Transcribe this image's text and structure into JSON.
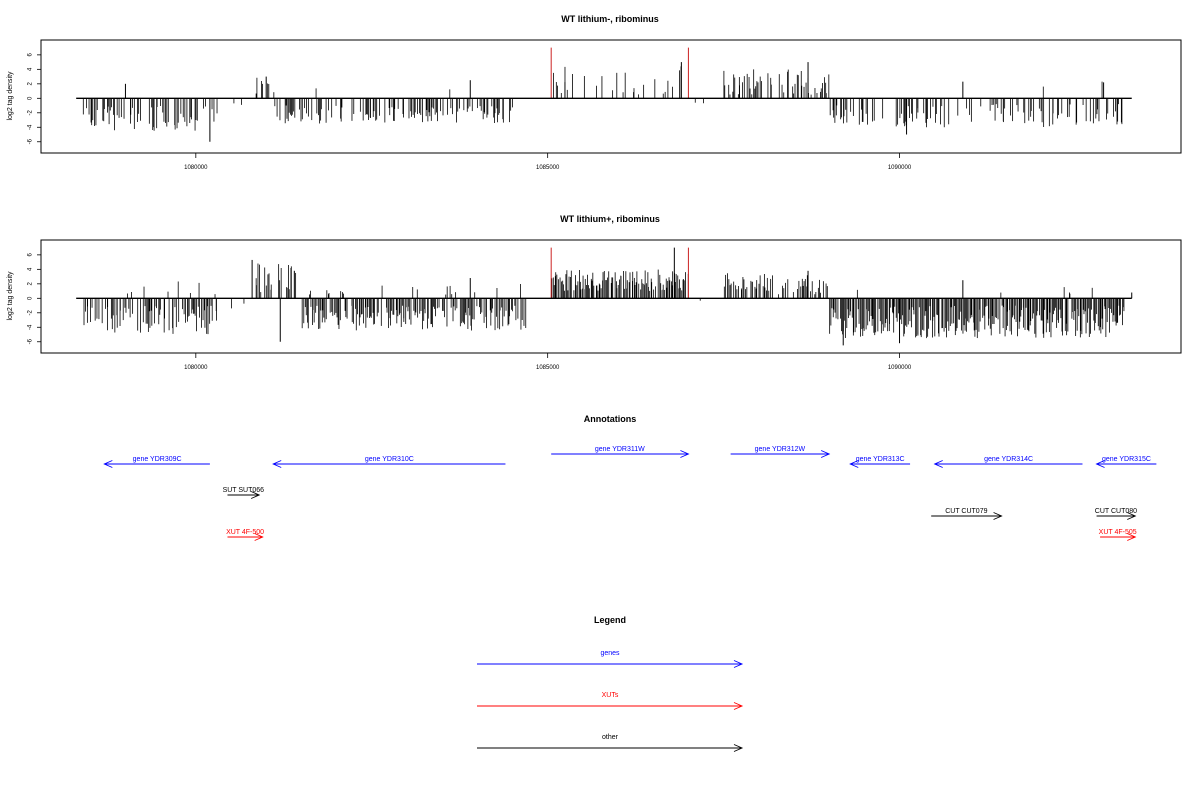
{
  "colors": {
    "gene": "#0000ff",
    "xut": "#ff0000",
    "other": "#000000",
    "peak": "#cc2222",
    "bar": "#000000"
  },
  "chart_data": [
    {
      "type": "bar",
      "title": "WT lithium-, ribominus",
      "ylabel": "log2 tag density",
      "ylim": [
        -7,
        7.5
      ],
      "yticks": [
        -6,
        -4,
        -2,
        0,
        2,
        4,
        6
      ],
      "xlim": [
        1077800,
        1094000
      ],
      "xticks": [
        1080000,
        1085000,
        1090000
      ],
      "xtick_labels": [
        "1080000",
        "1085000",
        "1090000"
      ],
      "xrange": [
        1078300,
        1093300
      ],
      "grid": false,
      "segments": [
        {
          "from": 1078400,
          "to": 1080300,
          "sign": -1,
          "density": 0.45,
          "min": 1.0,
          "max": 4.5,
          "pos_frac": 0.02,
          "pos_max": 2.0
        },
        {
          "from": 1080300,
          "to": 1080800,
          "sign": -1,
          "density": 0.05,
          "min": 0.2,
          "max": 1.0,
          "pos_frac": 0.0,
          "pos_max": 1.0
        },
        {
          "from": 1080800,
          "to": 1081100,
          "sign": 1,
          "density": 0.35,
          "min": 0.5,
          "max": 3.0,
          "pos_frac": 0.0,
          "pos_max": 1.0
        },
        {
          "from": 1081100,
          "to": 1084500,
          "sign": -1,
          "density": 0.55,
          "min": 1.0,
          "max": 3.5,
          "pos_frac": 0.03,
          "pos_max": 2.5
        },
        {
          "from": 1084500,
          "to": 1085050,
          "sign": -1,
          "density": 0.04,
          "min": 0.2,
          "max": 0.8,
          "pos_frac": 0.0,
          "pos_max": 1.0
        },
        {
          "from": 1085050,
          "to": 1087000,
          "sign": 1,
          "density": 0.22,
          "min": 0.5,
          "max": 4.5,
          "pos_frac": 0.0,
          "pos_max": 1.0
        },
        {
          "from": 1087000,
          "to": 1087500,
          "sign": -1,
          "density": 0.04,
          "min": 0.2,
          "max": 0.8,
          "pos_frac": 0.0,
          "pos_max": 1.0
        },
        {
          "from": 1087500,
          "to": 1089000,
          "sign": 1,
          "density": 0.5,
          "min": 0.5,
          "max": 4.0,
          "pos_frac": 0.0,
          "pos_max": 1.0
        },
        {
          "from": 1089000,
          "to": 1093200,
          "sign": -1,
          "density": 0.38,
          "min": 0.8,
          "max": 4.0,
          "pos_frac": 0.02,
          "pos_max": 2.5
        }
      ],
      "spikes": [
        {
          "x": 1079000,
          "y": 2.0
        },
        {
          "x": 1081000,
          "y": 3.0
        },
        {
          "x": 1083900,
          "y": 2.5
        },
        {
          "x": 1086900,
          "y": 5.0
        },
        {
          "x": 1088700,
          "y": 5.0
        },
        {
          "x": 1090900,
          "y": 2.3
        },
        {
          "x": 1092900,
          "y": 2.2
        },
        {
          "x": 1080200,
          "y": -6.0
        },
        {
          "x": 1090100,
          "y": -5.0
        }
      ],
      "peaks": [
        {
          "x": 1085050,
          "y": 7.0
        },
        {
          "x": 1087000,
          "y": 7.0
        }
      ],
      "seed": 11
    },
    {
      "type": "bar",
      "title": "WT lithium+, ribominus",
      "ylabel": "log2 tag density",
      "ylim": [
        -7,
        7.5
      ],
      "yticks": [
        -6,
        -4,
        -2,
        0,
        2,
        4,
        6
      ],
      "xlim": [
        1077800,
        1094000
      ],
      "xticks": [
        1080000,
        1085000,
        1090000
      ],
      "xtick_labels": [
        "1080000",
        "1085000",
        "1090000"
      ],
      "xrange": [
        1078300,
        1093300
      ],
      "grid": false,
      "segments": [
        {
          "from": 1078400,
          "to": 1080300,
          "sign": -1,
          "density": 0.7,
          "min": 1.0,
          "max": 5.0,
          "pos_frac": 0.1,
          "pos_max": 2.5
        },
        {
          "from": 1080300,
          "to": 1080800,
          "sign": -1,
          "density": 0.1,
          "min": 0.3,
          "max": 1.5,
          "pos_frac": 0.0,
          "pos_max": 1.0
        },
        {
          "from": 1080800,
          "to": 1081500,
          "sign": 1,
          "density": 0.55,
          "min": 0.8,
          "max": 5.0,
          "pos_frac": 0.0,
          "pos_max": 1.0
        },
        {
          "from": 1081500,
          "to": 1084700,
          "sign": -1,
          "density": 0.8,
          "min": 1.0,
          "max": 4.5,
          "pos_frac": 0.06,
          "pos_max": 2.0
        },
        {
          "from": 1084700,
          "to": 1085050,
          "sign": -1,
          "density": 0.08,
          "min": 0.2,
          "max": 1.0,
          "pos_frac": 0.0,
          "pos_max": 1.0
        },
        {
          "from": 1085050,
          "to": 1087000,
          "sign": 1,
          "density": 0.9,
          "min": 1.0,
          "max": 4.0,
          "pos_frac": 0.0,
          "pos_max": 1.0
        },
        {
          "from": 1087000,
          "to": 1087500,
          "sign": -1,
          "density": 0.06,
          "min": 0.2,
          "max": 1.0,
          "pos_frac": 0.0,
          "pos_max": 1.0
        },
        {
          "from": 1087500,
          "to": 1089000,
          "sign": 1,
          "density": 0.55,
          "min": 0.5,
          "max": 3.5,
          "pos_frac": 0.0,
          "pos_max": 1.0
        },
        {
          "from": 1089000,
          "to": 1093200,
          "sign": -1,
          "density": 0.95,
          "min": 1.0,
          "max": 5.5,
          "pos_frac": 0.03,
          "pos_max": 2.0
        }
      ],
      "spikes": [
        {
          "x": 1080800,
          "y": 5.3
        },
        {
          "x": 1081400,
          "y": 3.8
        },
        {
          "x": 1083900,
          "y": 2.8
        },
        {
          "x": 1086800,
          "y": 7.0
        },
        {
          "x": 1088700,
          "y": 3.8
        },
        {
          "x": 1090900,
          "y": 2.5
        },
        {
          "x": 1093300,
          "y": 0.8
        },
        {
          "x": 1081200,
          "y": -6.0
        },
        {
          "x": 1089200,
          "y": -6.5
        },
        {
          "x": 1090000,
          "y": -6.2
        }
      ],
      "peaks": [
        {
          "x": 1085050,
          "y": 7.0
        },
        {
          "x": 1087000,
          "y": 7.0
        }
      ],
      "seed": 29
    }
  ],
  "annotations": {
    "title": "Annotations",
    "features": [
      {
        "label": "gene YDR309C",
        "type": "gene",
        "start": 1078700,
        "end": 1080200,
        "strand": "-"
      },
      {
        "label": "gene YDR310C",
        "type": "gene",
        "start": 1081100,
        "end": 1084400,
        "strand": "-"
      },
      {
        "label": "gene YDR311W",
        "type": "gene",
        "start": 1085050,
        "end": 1087000,
        "strand": "+"
      },
      {
        "label": "gene YDR312W",
        "type": "gene",
        "start": 1087600,
        "end": 1089000,
        "strand": "+"
      },
      {
        "label": "gene YDR313C",
        "type": "gene",
        "start": 1089300,
        "end": 1090150,
        "strand": "-"
      },
      {
        "label": "gene YDR314C",
        "type": "gene",
        "start": 1090500,
        "end": 1092600,
        "strand": "-"
      },
      {
        "label": "gene YDR315C",
        "type": "gene",
        "start": 1092800,
        "end": 1093650,
        "strand": "-"
      },
      {
        "label": "SUT SUT066",
        "type": "other",
        "start": 1080450,
        "end": 1080900,
        "strand": "+"
      },
      {
        "label": "CUT CUT079",
        "type": "other",
        "start": 1090450,
        "end": 1091450,
        "strand": "+"
      },
      {
        "label": "CUT CUT080",
        "type": "other",
        "start": 1092800,
        "end": 1093350,
        "strand": "+"
      },
      {
        "label": "XUT 4F-500",
        "type": "xut",
        "start": 1080450,
        "end": 1080950,
        "strand": "+"
      },
      {
        "label": "XUT 4F-505",
        "type": "xut",
        "start": 1092850,
        "end": 1093350,
        "strand": "+"
      }
    ]
  },
  "legend": {
    "title": "Legend",
    "items": [
      {
        "label": "genes",
        "type": "gene"
      },
      {
        "label": "XUTs",
        "type": "xut"
      },
      {
        "label": "other",
        "type": "other"
      }
    ]
  }
}
